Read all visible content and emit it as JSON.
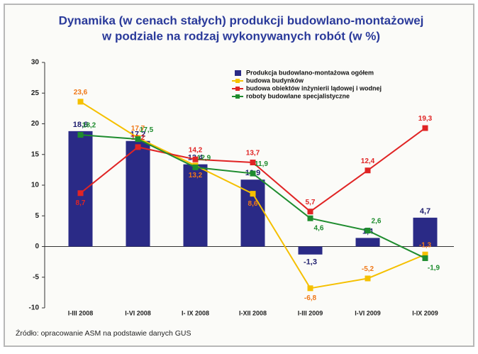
{
  "chart_data": {
    "type": "bar-line",
    "title": [
      "Dynamika (w cenach stałych) produkcji budowlano-montażowej",
      "w podziale na rodzaj wykonywanych robót (w %)"
    ],
    "categories": [
      "I-III 2008",
      "I-VI 2008",
      "I- IX 2008",
      "I-XII 2008",
      "I-III 2009",
      "I-VI 2009",
      "I-IX 2009"
    ],
    "series": [
      {
        "name": "Produkcja budowlano-montażowa ogółem",
        "type": "bar",
        "color": "#2a2a86",
        "label_color": "#1e1e6e",
        "values": [
          18.8,
          17.2,
          13.4,
          10.9,
          -1.3,
          1.4,
          4.7
        ],
        "value_labels": [
          "18,8",
          "17,2",
          "13,4",
          "10,9",
          "-1,3",
          "1,4",
          "4,7"
        ]
      },
      {
        "name": "budowa budynków",
        "type": "line",
        "color": "#f5c000",
        "label_color": "#f07818",
        "values": [
          23.6,
          17.7,
          13.2,
          8.6,
          -6.8,
          -5.2,
          -1.3
        ],
        "value_labels": [
          "23,6",
          "17,7",
          "13,2",
          "8,6",
          "-6,8",
          "-5,2",
          "-1,3"
        ]
      },
      {
        "name": "budowa obiektów inżynierii lądowej i wodnej",
        "type": "line",
        "color": "#e02424",
        "label_color": "#e02424",
        "values": [
          8.7,
          16.2,
          14.2,
          13.7,
          5.7,
          12.4,
          19.3
        ],
        "value_labels": [
          "8,7",
          "16,2",
          "14,2",
          "13,7",
          "5,7",
          "12,4",
          "19,3"
        ]
      },
      {
        "name": "roboty budowlane specjalistyczne",
        "type": "line",
        "color": "#1e8c2e",
        "label_color": "#1e8c2e",
        "values": [
          18.2,
          17.5,
          12.9,
          11.9,
          4.6,
          2.6,
          -1.9
        ],
        "value_labels": [
          "18,2",
          "17,5",
          "12,9",
          "11,9",
          "4,6",
          "2,6",
          "-1,9"
        ]
      }
    ],
    "ylim": [
      -10,
      30
    ],
    "yticks": [
      -10,
      -5,
      0,
      5,
      10,
      15,
      20,
      25,
      30
    ],
    "grid": false,
    "source": "Źródło: opracowanie ASM na podstawie danych GUS"
  }
}
